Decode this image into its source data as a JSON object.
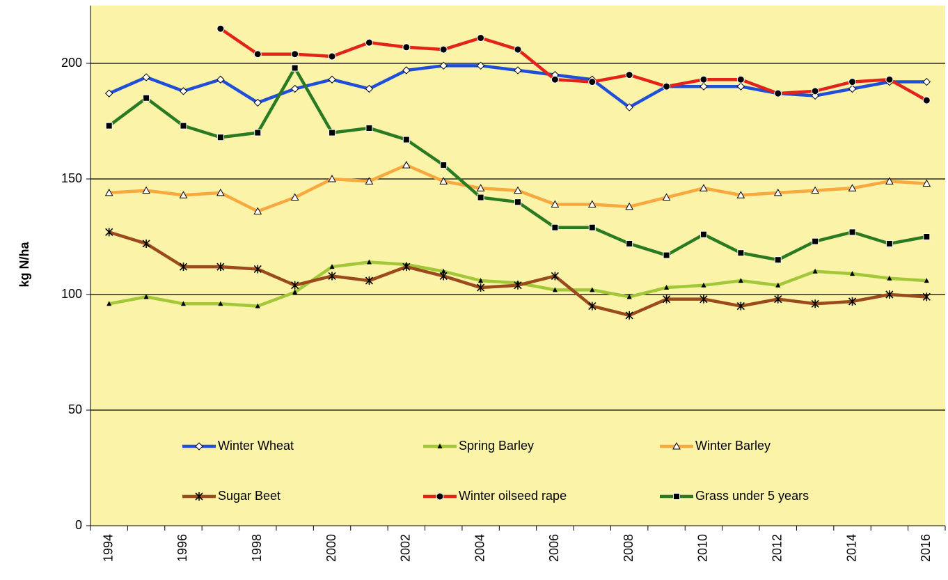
{
  "chart_data": {
    "type": "line",
    "y_label": "kg N/ha",
    "categories": [
      "1994",
      null,
      "1996",
      null,
      "1998",
      null,
      "2000",
      null,
      "2002",
      null,
      "2004",
      null,
      "2006",
      null,
      "2008",
      null,
      "2010",
      null,
      "2012",
      null,
      "2014",
      null,
      "2016"
    ],
    "ylim": [
      0,
      225
    ],
    "yticks": [
      0,
      50,
      100,
      150,
      200
    ],
    "grid": true,
    "background": "#fbf3a8",
    "series": [
      {
        "name": "Winter Wheat",
        "color": "#1f4fd8",
        "marker": "diamond",
        "values": [
          187,
          194,
          188,
          193,
          183,
          189,
          193,
          189,
          197,
          199,
          199,
          197,
          195,
          193,
          181,
          190,
          190,
          190,
          187,
          186,
          189,
          192,
          192
        ]
      },
      {
        "name": "Spring Barley",
        "color": "#a2c83a",
        "marker": "small-triangle",
        "values": [
          96,
          99,
          96,
          96,
          95,
          101,
          112,
          114,
          113,
          110,
          106,
          105,
          102,
          102,
          99,
          103,
          104,
          106,
          104,
          110,
          109,
          107,
          106
        ]
      },
      {
        "name": "Winter Barley",
        "color": "#f7a940",
        "marker": "triangle",
        "values": [
          144,
          145,
          143,
          144,
          136,
          142,
          150,
          149,
          156,
          149,
          146,
          145,
          139,
          139,
          138,
          142,
          146,
          143,
          144,
          145,
          146,
          149,
          148
        ]
      },
      {
        "name": "Sugar Beet",
        "color": "#9a4a1c",
        "marker": "asterisk",
        "values": [
          127,
          122,
          112,
          112,
          111,
          104,
          108,
          106,
          112,
          108,
          103,
          104,
          108,
          95,
          91,
          98,
          98,
          95,
          98,
          96,
          97,
          100,
          99
        ]
      },
      {
        "name": "Winter oilseed rape",
        "color": "#e2231a",
        "marker": "circle",
        "values": [
          null,
          null,
          null,
          215,
          204,
          204,
          203,
          209,
          207,
          206,
          211,
          206,
          193,
          192,
          195,
          190,
          193,
          193,
          187,
          188,
          192,
          193,
          184
        ]
      },
      {
        "name": "Grass under 5 years",
        "color": "#2a7a22",
        "marker": "square",
        "values": [
          173,
          185,
          173,
          168,
          170,
          198,
          170,
          172,
          167,
          156,
          142,
          140,
          129,
          129,
          122,
          117,
          126,
          118,
          115,
          123,
          127,
          122,
          125
        ]
      }
    ]
  }
}
